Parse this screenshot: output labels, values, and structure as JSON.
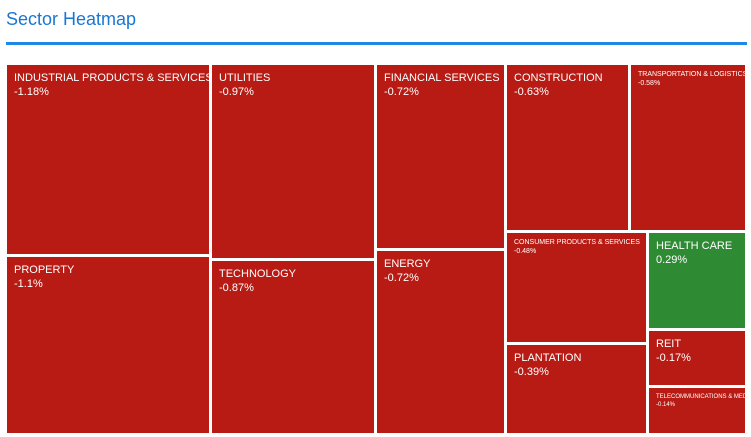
{
  "header": {
    "title": "Sector Heatmap"
  },
  "chart_data": {
    "type": "heatmap",
    "title": "Sector Heatmap",
    "sectors": [
      {
        "name": "INDUSTRIAL PRODUCTS & SERVICES",
        "change": "-1.18%",
        "value": -1.18
      },
      {
        "name": "UTILITIES",
        "change": "-0.97%",
        "value": -0.97
      },
      {
        "name": "FINANCIAL SERVICES",
        "change": "-0.72%",
        "value": -0.72
      },
      {
        "name": "CONSTRUCTION",
        "change": "-0.63%",
        "value": -0.63
      },
      {
        "name": "TRANSPORTATION & LOGISTICS",
        "change": "-0.58%",
        "value": -0.58
      },
      {
        "name": "PROPERTY",
        "change": "-1.1%",
        "value": -1.1
      },
      {
        "name": "TECHNOLOGY",
        "change": "-0.87%",
        "value": -0.87
      },
      {
        "name": "ENERGY",
        "change": "-0.72%",
        "value": -0.72
      },
      {
        "name": "CONSUMER PRODUCTS & SERVICES",
        "change": "-0.48%",
        "value": -0.48
      },
      {
        "name": "HEALTH CARE",
        "change": "0.29%",
        "value": 0.29
      },
      {
        "name": "PLANTATION",
        "change": "-0.39%",
        "value": -0.39
      },
      {
        "name": "REIT",
        "change": "-0.17%",
        "value": -0.17
      },
      {
        "name": "TELECOMMUNICATIONS & MEDIA",
        "change": "-0.14%",
        "value": -0.14
      }
    ],
    "colors": {
      "negative": "#b71b14",
      "positive": "#2f8a34"
    }
  }
}
